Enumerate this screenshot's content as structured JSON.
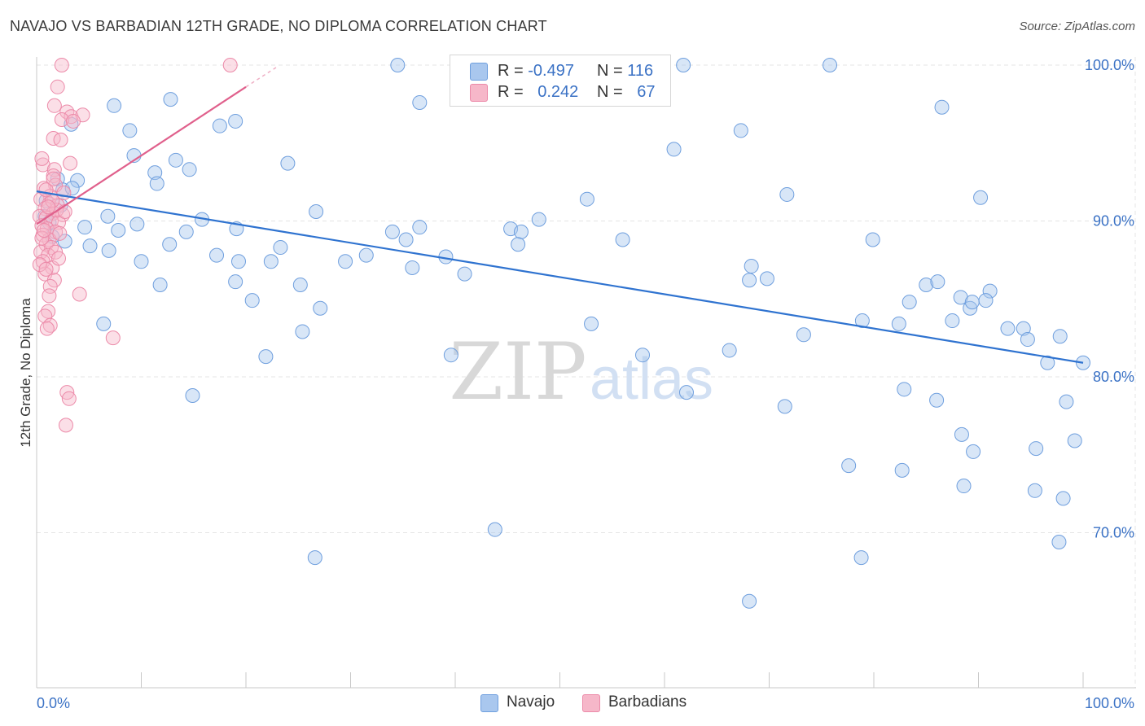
{
  "title": "NAVAJO VS BARBADIAN 12TH GRADE, NO DIPLOMA CORRELATION CHART",
  "source": "Source: ZipAtlas.com",
  "watermark": {
    "zip": "ZIP",
    "atlas": "atlas"
  },
  "legend": {
    "rows": [
      {
        "r_label": "R =",
        "r_value": "-0.497",
        "n_label": "N =",
        "n_value": "116",
        "color": "#a9c7ee"
      },
      {
        "r_label": "R =",
        "r_value": "0.242",
        "n_label": "N =",
        "n_value": "67",
        "color": "#f6b7c9"
      }
    ]
  },
  "bottom_legend": {
    "navajo": "Navajo",
    "barbadians": "Barbadians"
  },
  "colors": {
    "navajo_fill": "#a9c7ee",
    "navajo_stroke": "#6f9fde",
    "navajo_line": "#2f73d0",
    "barb_fill": "#f6b7c9",
    "barb_stroke": "#ec8aa9",
    "barb_line": "#e0608c",
    "tick_text": "#3b72c5",
    "grid": "#e4e4e4"
  },
  "chart_data": {
    "type": "scatter",
    "title": "NAVAJO VS BARBADIAN 12TH GRADE, NO DIPLOMA CORRELATION CHART",
    "xlabel": "",
    "ylabel": "12th Grade, No Diploma",
    "xlim": [
      0,
      100
    ],
    "ylim": [
      60,
      104
    ],
    "x_tick_labels": [
      "0.0%",
      "100.0%"
    ],
    "y_ticks": [
      70,
      80,
      90,
      100
    ],
    "y_tick_labels": [
      "70.0%",
      "80.0%",
      "90.0%",
      "100.0%"
    ],
    "grid": true,
    "legend_position": "top-center",
    "series": [
      {
        "name": "Navajo",
        "trend": {
          "x": [
            0,
            100
          ],
          "y": [
            91.9,
            80.9
          ]
        },
        "points": [
          [
            3.3,
            96.2
          ],
          [
            7.4,
            97.4
          ],
          [
            8.9,
            95.8
          ],
          [
            9.3,
            94.2
          ],
          [
            11.3,
            93.1
          ],
          [
            12.8,
            97.8
          ],
          [
            13.3,
            93.9
          ],
          [
            14.6,
            93.3
          ],
          [
            17.5,
            96.1
          ],
          [
            19.0,
            96.4
          ],
          [
            24.0,
            93.7
          ],
          [
            34.5,
            100.0
          ],
          [
            36.6,
            97.6
          ],
          [
            53.1,
            100.0
          ],
          [
            61.8,
            100.0
          ],
          [
            75.8,
            100.0
          ],
          [
            60.9,
            94.6
          ],
          [
            67.3,
            95.8
          ],
          [
            71.7,
            91.7
          ],
          [
            86.5,
            97.3
          ],
          [
            90.2,
            91.5
          ],
          [
            0.9,
            91.3
          ],
          [
            2.0,
            92.7
          ],
          [
            3.9,
            92.6
          ],
          [
            2.5,
            92.0
          ],
          [
            11.5,
            92.4
          ],
          [
            15.8,
            90.1
          ],
          [
            9.6,
            89.8
          ],
          [
            1.5,
            89.0
          ],
          [
            4.6,
            89.6
          ],
          [
            7.8,
            89.4
          ],
          [
            19.1,
            89.5
          ],
          [
            23.3,
            88.3
          ],
          [
            26.7,
            90.6
          ],
          [
            34.0,
            89.3
          ],
          [
            35.3,
            88.8
          ],
          [
            36.6,
            89.6
          ],
          [
            45.3,
            89.5
          ],
          [
            46.3,
            89.3
          ],
          [
            46.0,
            88.5
          ],
          [
            52.6,
            91.4
          ],
          [
            56.0,
            88.8
          ],
          [
            2.7,
            88.7
          ],
          [
            6.9,
            88.1
          ],
          [
            10.0,
            87.4
          ],
          [
            17.2,
            87.8
          ],
          [
            19.3,
            87.4
          ],
          [
            22.4,
            87.4
          ],
          [
            29.5,
            87.4
          ],
          [
            31.5,
            87.8
          ],
          [
            39.1,
            87.7
          ],
          [
            35.9,
            87.0
          ],
          [
            40.9,
            86.6
          ],
          [
            11.8,
            85.9
          ],
          [
            19.0,
            86.1
          ],
          [
            25.2,
            85.9
          ],
          [
            20.6,
            84.9
          ],
          [
            27.1,
            84.4
          ],
          [
            6.4,
            83.4
          ],
          [
            25.4,
            82.9
          ],
          [
            53.0,
            83.4
          ],
          [
            57.9,
            81.4
          ],
          [
            68.3,
            87.1
          ],
          [
            69.8,
            86.3
          ],
          [
            68.1,
            86.2
          ],
          [
            79.9,
            88.8
          ],
          [
            83.4,
            84.8
          ],
          [
            85.0,
            85.9
          ],
          [
            86.1,
            86.1
          ],
          [
            88.3,
            85.1
          ],
          [
            89.2,
            84.4
          ],
          [
            91.1,
            85.5
          ],
          [
            89.4,
            84.8
          ],
          [
            90.7,
            84.9
          ],
          [
            87.5,
            83.6
          ],
          [
            92.8,
            83.1
          ],
          [
            94.3,
            83.1
          ],
          [
            94.7,
            82.4
          ],
          [
            97.8,
            82.6
          ],
          [
            100.0,
            80.9
          ],
          [
            78.9,
            83.6
          ],
          [
            82.4,
            83.4
          ],
          [
            73.3,
            82.7
          ],
          [
            66.2,
            81.7
          ],
          [
            21.9,
            81.3
          ],
          [
            39.6,
            81.4
          ],
          [
            96.6,
            80.9
          ],
          [
            14.9,
            78.8
          ],
          [
            62.1,
            79.0
          ],
          [
            71.5,
            78.1
          ],
          [
            82.9,
            79.2
          ],
          [
            86.0,
            78.5
          ],
          [
            98.4,
            78.4
          ],
          [
            95.5,
            75.4
          ],
          [
            99.2,
            75.9
          ],
          [
            89.5,
            75.2
          ],
          [
            88.4,
            76.3
          ],
          [
            77.6,
            74.3
          ],
          [
            82.7,
            74.0
          ],
          [
            88.6,
            73.0
          ],
          [
            95.4,
            72.7
          ],
          [
            98.1,
            72.2
          ],
          [
            43.8,
            70.2
          ],
          [
            26.6,
            68.4
          ],
          [
            78.8,
            68.4
          ],
          [
            97.7,
            69.4
          ],
          [
            68.1,
            65.6
          ],
          [
            0.8,
            90.3
          ],
          [
            1.2,
            89.9
          ],
          [
            2.3,
            91.0
          ],
          [
            3.4,
            92.1
          ],
          [
            6.8,
            90.3
          ],
          [
            5.1,
            88.4
          ],
          [
            14.3,
            89.3
          ],
          [
            12.7,
            88.5
          ],
          [
            48.0,
            90.1
          ]
        ]
      },
      {
        "name": "Barbadians",
        "trend": {
          "x": [
            0,
            20
          ],
          "y": [
            89.8,
            98.6
          ]
        },
        "trend_extension": {
          "x": [
            20,
            23
          ],
          "y": [
            98.6,
            99.9
          ]
        },
        "points": [
          [
            2.4,
            100.0
          ],
          [
            18.5,
            100.0
          ],
          [
            2.0,
            98.6
          ],
          [
            1.7,
            97.4
          ],
          [
            2.9,
            97.0
          ],
          [
            3.3,
            96.7
          ],
          [
            4.4,
            96.8
          ],
          [
            2.4,
            96.5
          ],
          [
            3.5,
            96.4
          ],
          [
            1.6,
            95.3
          ],
          [
            2.3,
            95.2
          ],
          [
            0.6,
            93.6
          ],
          [
            3.2,
            93.7
          ],
          [
            1.7,
            93.3
          ],
          [
            1.6,
            92.9
          ],
          [
            1.8,
            92.3
          ],
          [
            0.7,
            92.1
          ],
          [
            1.3,
            91.6
          ],
          [
            0.4,
            91.4
          ],
          [
            1.2,
            91.1
          ],
          [
            2.0,
            91.0
          ],
          [
            0.8,
            90.8
          ],
          [
            1.6,
            90.5
          ],
          [
            2.5,
            90.4
          ],
          [
            0.3,
            90.3
          ],
          [
            0.9,
            90.2
          ],
          [
            1.4,
            90.0
          ],
          [
            2.1,
            89.9
          ],
          [
            0.5,
            89.7
          ],
          [
            1.0,
            89.5
          ],
          [
            1.8,
            89.3
          ],
          [
            0.6,
            89.1
          ],
          [
            1.2,
            88.8
          ],
          [
            0.9,
            88.5
          ],
          [
            1.4,
            88.3
          ],
          [
            0.4,
            88.0
          ],
          [
            1.1,
            87.8
          ],
          [
            0.6,
            87.4
          ],
          [
            1.5,
            87.0
          ],
          [
            0.8,
            86.6
          ],
          [
            1.7,
            86.2
          ],
          [
            1.3,
            85.8
          ],
          [
            4.1,
            85.3
          ],
          [
            1.1,
            84.2
          ],
          [
            0.8,
            83.9
          ],
          [
            1.3,
            83.3
          ],
          [
            1.0,
            83.1
          ],
          [
            7.3,
            82.5
          ],
          [
            2.9,
            79.0
          ],
          [
            3.1,
            78.6
          ],
          [
            2.8,
            76.9
          ],
          [
            0.5,
            88.9
          ],
          [
            1.9,
            90.7
          ],
          [
            2.7,
            90.6
          ],
          [
            0.7,
            89.4
          ],
          [
            1.5,
            91.3
          ],
          [
            0.9,
            92.0
          ],
          [
            2.2,
            89.2
          ],
          [
            1.1,
            90.9
          ],
          [
            0.3,
            87.2
          ],
          [
            1.6,
            92.7
          ],
          [
            0.5,
            94.0
          ],
          [
            2.6,
            91.8
          ],
          [
            1.8,
            88.0
          ],
          [
            0.9,
            86.9
          ],
          [
            1.2,
            85.2
          ],
          [
            2.1,
            87.6
          ]
        ]
      }
    ]
  }
}
